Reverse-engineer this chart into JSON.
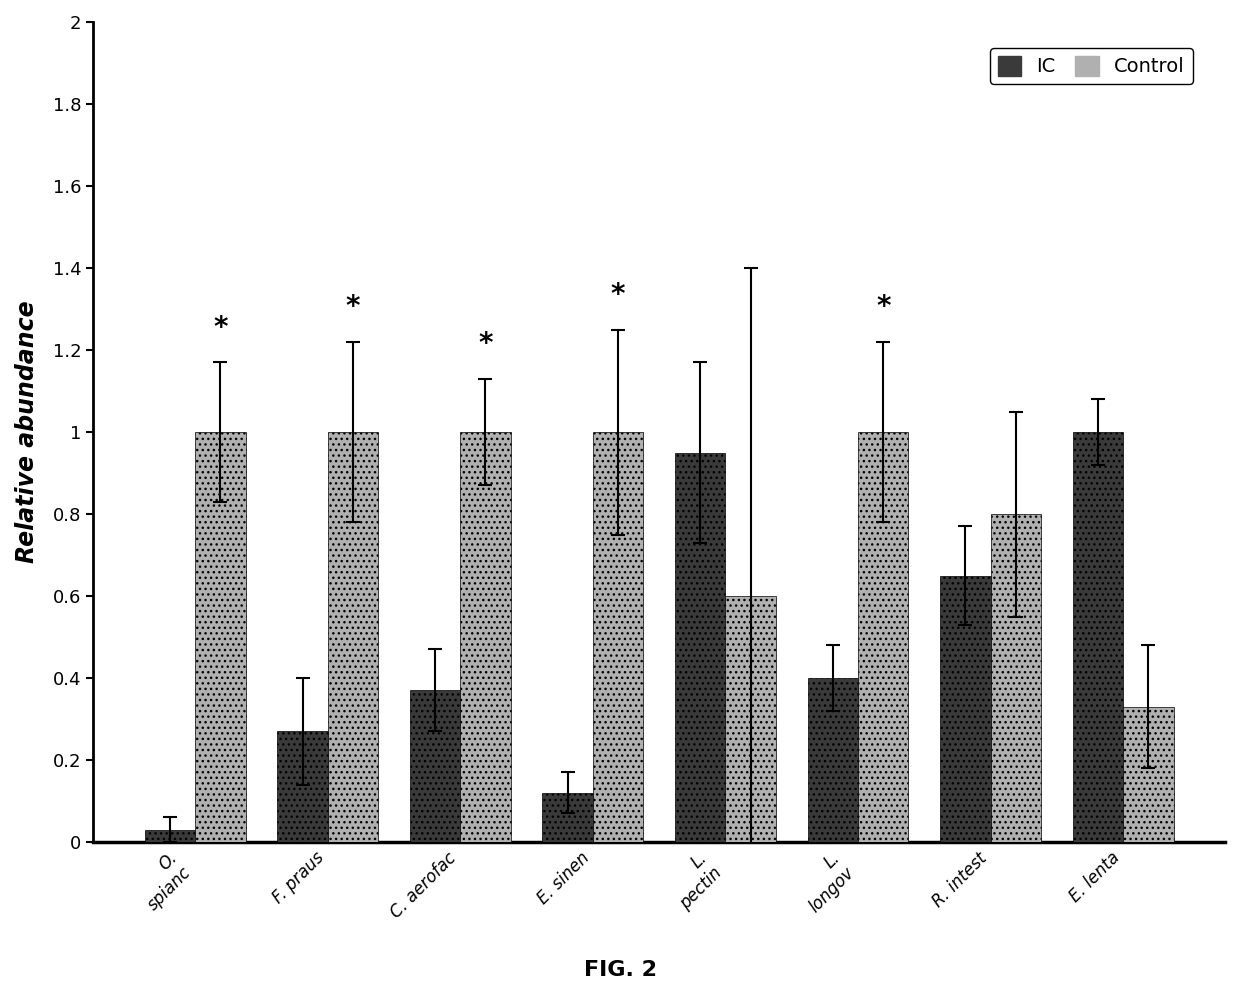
{
  "categories": [
    "O.\nspianc",
    "F. praus",
    "C. aerofac",
    "E. sinen",
    "L.\npectin",
    "L.\nlongov",
    "R. intest",
    "E. lenta"
  ],
  "IC_values": [
    0.03,
    0.27,
    0.37,
    0.12,
    0.95,
    0.4,
    0.65,
    1.0
  ],
  "Control_values": [
    1.0,
    1.0,
    1.0,
    1.0,
    0.6,
    1.0,
    0.8,
    0.33
  ],
  "IC_errors": [
    0.03,
    0.13,
    0.1,
    0.05,
    0.22,
    0.08,
    0.12,
    0.08
  ],
  "Control_errors": [
    0.17,
    0.22,
    0.13,
    0.25,
    0.8,
    0.22,
    0.25,
    0.15
  ],
  "significant": [
    true,
    true,
    true,
    true,
    false,
    true,
    false,
    false
  ],
  "IC_color": "#3a3a3a",
  "Control_color": "#b0b0b0",
  "ylabel": "Relative abundance",
  "ylim": [
    0,
    2.0
  ],
  "yticks": [
    0,
    0.2,
    0.4,
    0.6,
    0.8,
    1.0,
    1.2,
    1.4,
    1.6,
    1.8,
    2.0
  ],
  "legend_IC": "IC",
  "legend_Control": "Control",
  "fig_label": "FIG. 2",
  "bar_width": 0.38
}
